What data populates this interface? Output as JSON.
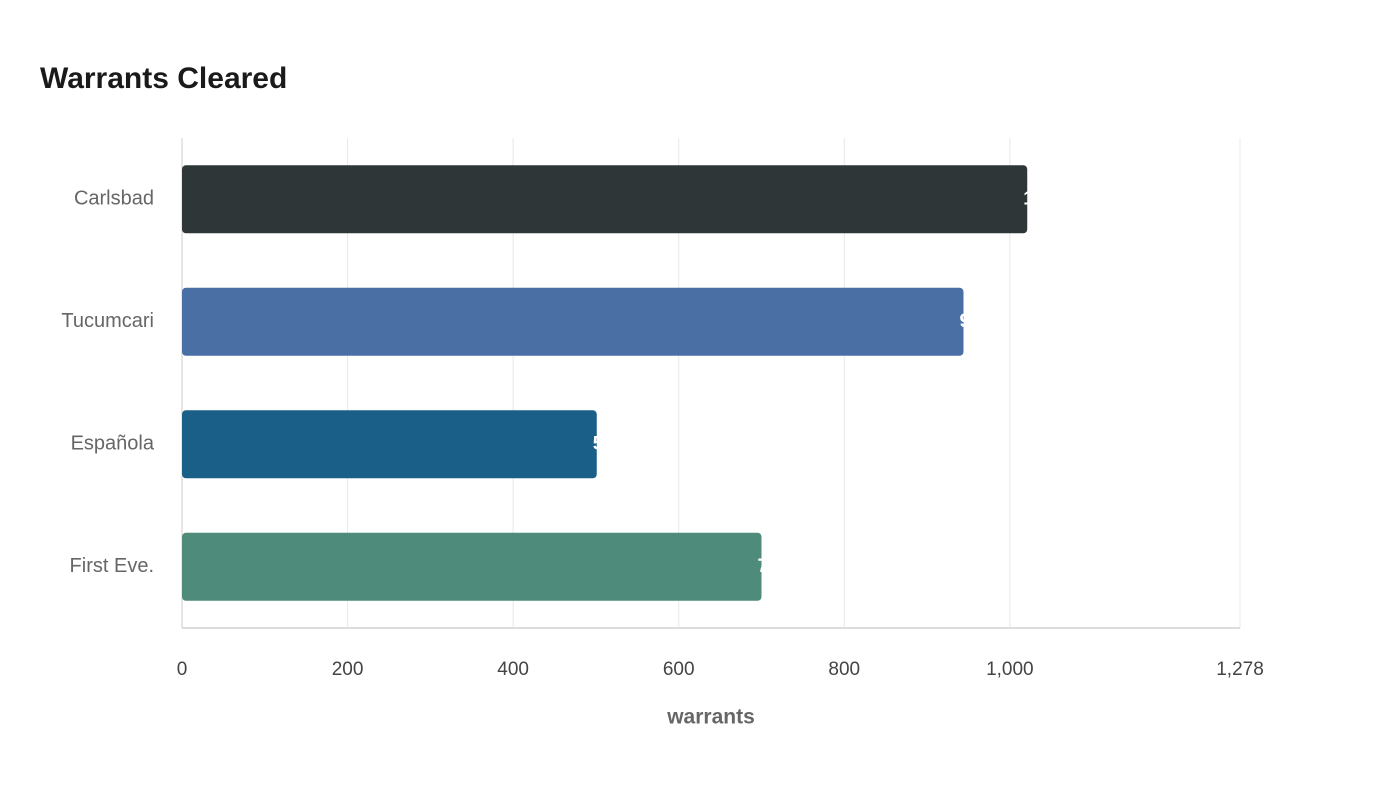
{
  "chart_data": {
    "type": "bar",
    "orientation": "horizontal",
    "title": "Warrants Cleared",
    "x_label": "warrants",
    "categories": [
      "Carlsbad",
      "Tucumcari",
      "Española",
      "First Eve."
    ],
    "values": [
      1021,
      944,
      501,
      700
    ],
    "colors": [
      "#2f3638",
      "#4a6fa5",
      "#1a5f87",
      "#4f8b7a"
    ],
    "xlim": [
      0,
      1278
    ],
    "xticks": [
      0,
      200,
      400,
      600,
      800,
      {
        "value": 1000,
        "label": "1,000"
      },
      {
        "value": 1278,
        "label": "1,278"
      }
    ],
    "grid": true
  }
}
